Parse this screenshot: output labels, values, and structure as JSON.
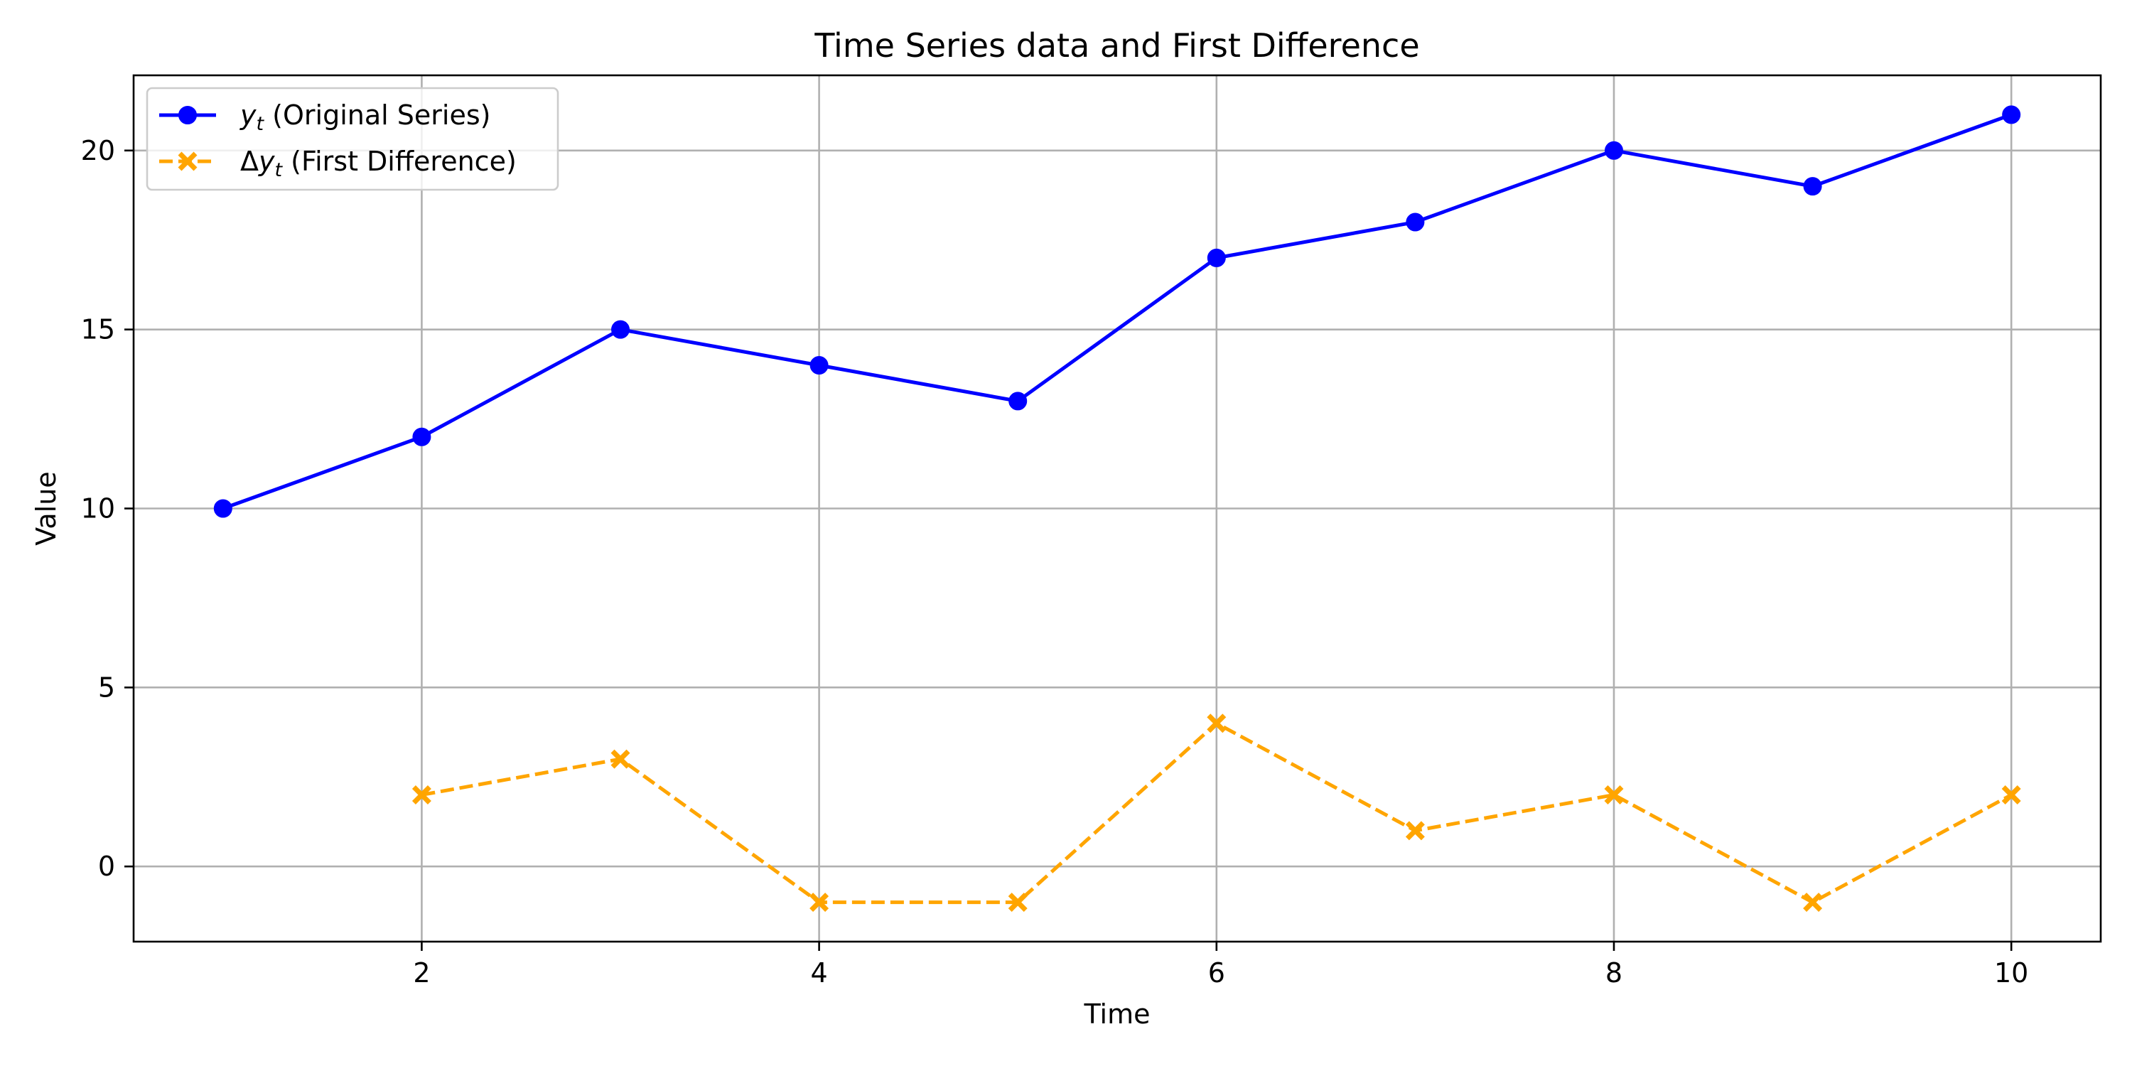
{
  "chart_data": {
    "type": "line",
    "title": "Time Series data and First Difference",
    "xlabel": "Time",
    "ylabel": "Value",
    "xlim": [
      0.55,
      10.45
    ],
    "ylim": [
      -2.1,
      22.1
    ],
    "xticks": [
      2,
      4,
      6,
      8,
      10
    ],
    "yticks": [
      0,
      5,
      10,
      15,
      20
    ],
    "grid": true,
    "legend_position": "top-left",
    "series": [
      {
        "name_main": "y",
        "name_sub": "t",
        "name_rest": " (Original Series)",
        "color": "#0000ff",
        "linestyle": "solid",
        "marker": "circle",
        "x": [
          1,
          2,
          3,
          4,
          5,
          6,
          7,
          8,
          9,
          10
        ],
        "values": [
          10,
          12,
          15,
          14,
          13,
          17,
          18,
          20,
          19,
          21
        ]
      },
      {
        "name_prefix": "Δ",
        "name_main": "y",
        "name_sub": "t",
        "name_rest": " (First Difference)",
        "color": "#ffa500",
        "linestyle": "dashed",
        "marker": "x",
        "x": [
          2,
          3,
          4,
          5,
          6,
          7,
          8,
          9,
          10
        ],
        "values": [
          2,
          3,
          -1,
          -1,
          4,
          1,
          2,
          -1,
          2
        ]
      }
    ]
  }
}
